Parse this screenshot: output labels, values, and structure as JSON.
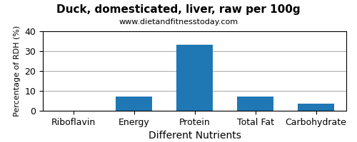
{
  "chart_data": {
    "type": "bar",
    "title": "Duck, domesticated, liver, raw per 100g",
    "subtitle": "www.dietandfitnesstoday.com",
    "xlabel": "Different Nutrients",
    "ylabel": "Percentage of RDH (%)",
    "categories": [
      "Riboflavin",
      "Energy",
      "Protein",
      "Total Fat",
      "Carbohydrate"
    ],
    "values": [
      0.0,
      7.1,
      33.2,
      7.2,
      3.5
    ],
    "ylim": [
      0,
      40
    ],
    "yticks": [
      0,
      10,
      20,
      30,
      40
    ],
    "grid": true
  }
}
